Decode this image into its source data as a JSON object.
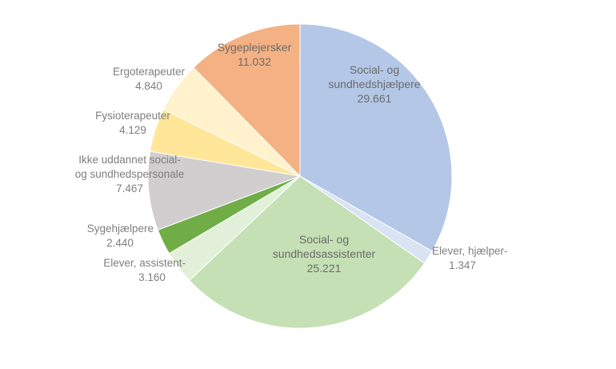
{
  "chart_data": {
    "type": "pie",
    "title": "",
    "slices": [
      {
        "name_lines": [
          "Social- og",
          "sundhedshjælpere"
        ],
        "value": 29661,
        "value_label": "29.661",
        "color": "#b4c7e7"
      },
      {
        "name_lines": [
          "Elever, hjælper-"
        ],
        "value": 1347,
        "value_label": "1.347",
        "color": "#dae3f3"
      },
      {
        "name_lines": [
          "Social- og",
          "sundhedsassistenter"
        ],
        "value": 25221,
        "value_label": "25.221",
        "color": "#c5e0b4"
      },
      {
        "name_lines": [
          "Elever, assistent-"
        ],
        "value": 3160,
        "value_label": "3.160",
        "color": "#e2f0d9"
      },
      {
        "name_lines": [
          "Sygehjælpere"
        ],
        "value": 2440,
        "value_label": "2.440",
        "color": "#70ad47"
      },
      {
        "name_lines": [
          "Ikke uddannet social-",
          "og sundhedspersonale"
        ],
        "value": 7467,
        "value_label": "7.467",
        "color": "#d0cece"
      },
      {
        "name_lines": [
          "Fysioterapeuter"
        ],
        "value": 4129,
        "value_label": "4.129",
        "color": "#ffe699"
      },
      {
        "name_lines": [
          "Ergoterapeuter"
        ],
        "value": 4840,
        "value_label": "4.840",
        "color": "#fff2cc"
      },
      {
        "name_lines": [
          "Sygeplejersker"
        ],
        "value": 11032,
        "value_label": "11.032",
        "color": "#f4b183"
      }
    ],
    "start_angle_deg": 0,
    "direction": "clockwise",
    "legend": "none",
    "data_labels": "category name and value"
  }
}
